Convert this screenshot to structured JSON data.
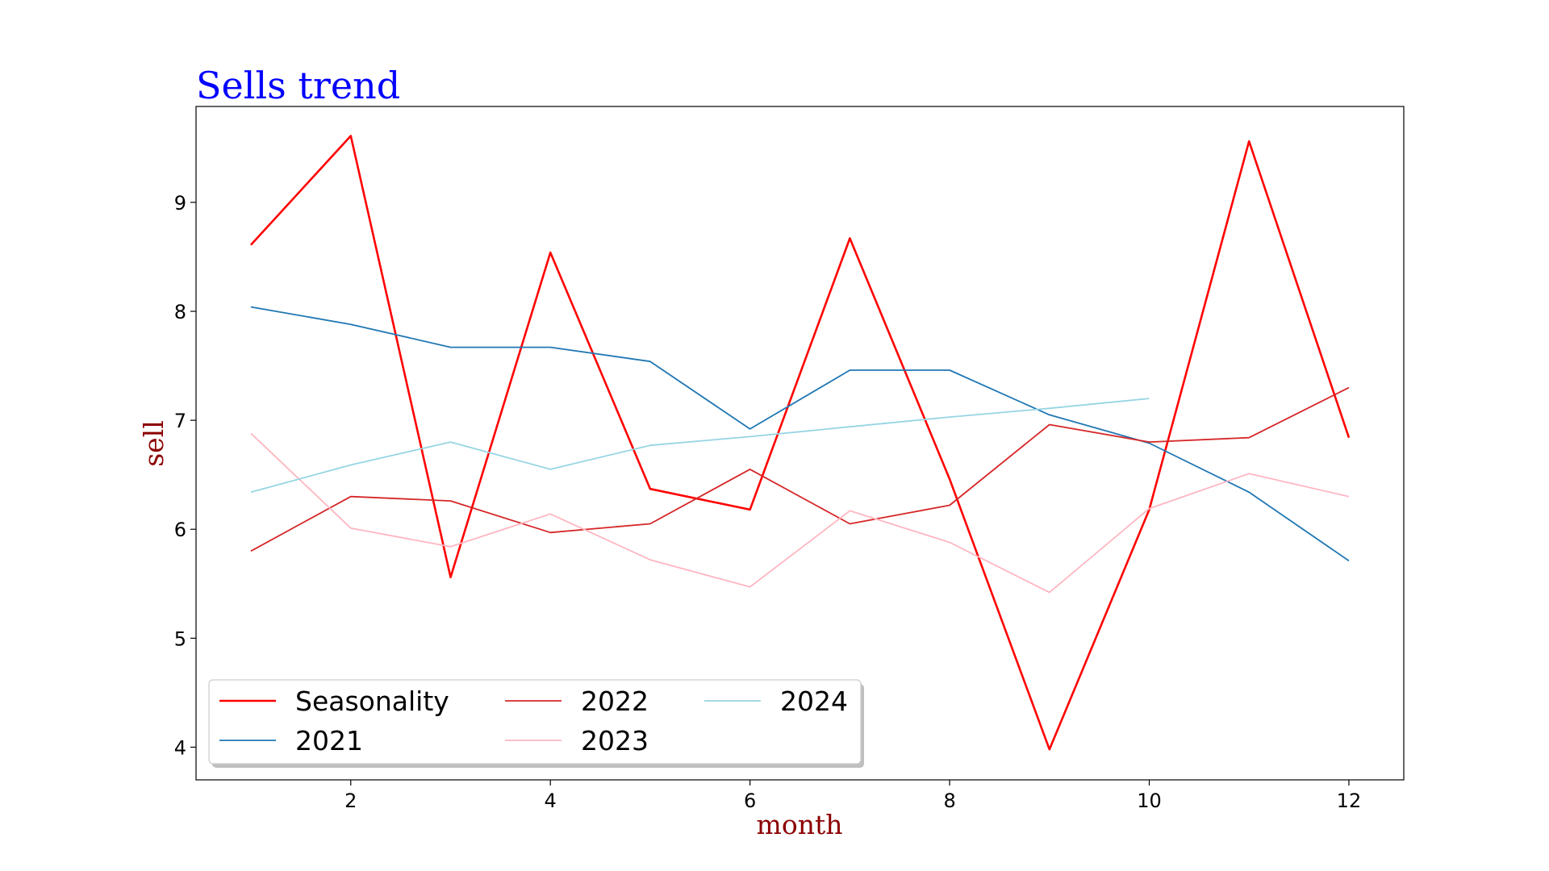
{
  "chart_data": {
    "type": "line",
    "title": "Sells trend",
    "xlabel": "month",
    "ylabel": "sell",
    "title_color": "#0000ff",
    "axis_label_color": "#8b0000",
    "xlim": [
      0.45,
      12.55
    ],
    "ylim": [
      3.7,
      9.88
    ],
    "xticks": [
      2,
      4,
      6,
      8,
      10,
      12
    ],
    "yticks": [
      4,
      5,
      6,
      7,
      8,
      9
    ],
    "grid": false,
    "legend_position": "lower-left",
    "legend_columns": 3,
    "series": [
      {
        "name": "Seasonality",
        "color": "#ff0000",
        "x": [
          1,
          2,
          3,
          4,
          5,
          6,
          7,
          8,
          9,
          10,
          11,
          12
        ],
        "y": [
          8.61,
          9.61,
          5.56,
          8.54,
          6.37,
          6.18,
          8.67,
          6.46,
          3.98,
          6.18,
          9.56,
          6.84
        ]
      },
      {
        "name": "2021",
        "color": "#1f77b4",
        "x": [
          1,
          2,
          3,
          4,
          5,
          6,
          7,
          8,
          9,
          10,
          11,
          12
        ],
        "y": [
          8.04,
          7.88,
          7.67,
          7.67,
          7.54,
          6.92,
          7.46,
          7.46,
          7.05,
          6.79,
          6.34,
          5.71
        ]
      },
      {
        "name": "2022",
        "color": "#d62728",
        "x": [
          1,
          2,
          3,
          4,
          5,
          6,
          7,
          8,
          9,
          10,
          11,
          12
        ],
        "y": [
          5.8,
          6.3,
          6.26,
          5.97,
          6.05,
          6.55,
          6.05,
          6.22,
          6.96,
          6.8,
          6.84,
          7.3
        ]
      },
      {
        "name": "2023",
        "color": "#ffb6c1",
        "x": [
          1,
          2,
          3,
          4,
          5,
          6,
          7,
          8,
          9,
          10,
          11,
          12
        ],
        "y": [
          6.88,
          6.01,
          5.84,
          6.14,
          5.72,
          5.47,
          6.17,
          5.88,
          5.42,
          6.19,
          6.51,
          6.3
        ]
      },
      {
        "name": "2024",
        "color": "#97d5e3",
        "x": [
          1,
          2,
          3,
          4,
          5,
          6,
          7,
          8,
          9,
          10
        ],
        "y": [
          6.34,
          6.59,
          6.8,
          6.55,
          6.77,
          6.85,
          6.94,
          7.03,
          7.11,
          7.2
        ]
      }
    ]
  }
}
